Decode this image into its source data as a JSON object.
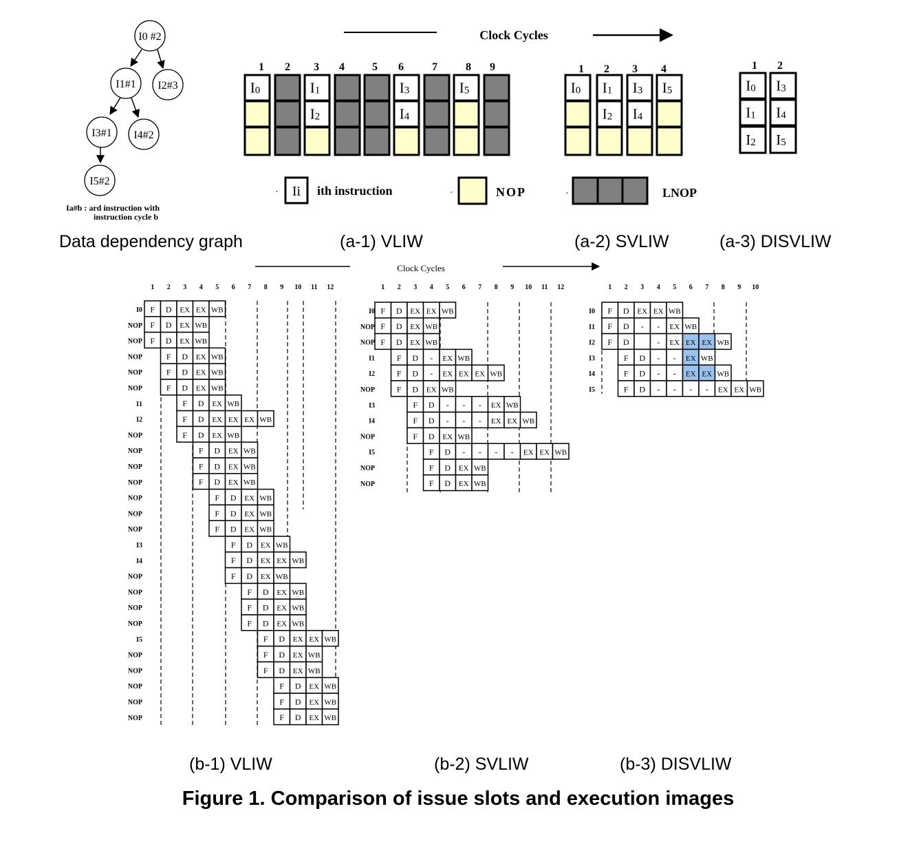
{
  "caption": "Figure 1. Comparison of issue slots and execution images",
  "clock_cycles_label": "Clock Cycles",
  "clock_cycles_label_small": "Clock    Cycles",
  "colors": {
    "nop": "#ffffcc",
    "lnop": "#808080",
    "highlight": "#99c2ee",
    "cell": "#ffffff",
    "line": "#000000"
  },
  "graph": {
    "label": "Data dependency graph",
    "note_line1": "Ia#b :  ard  instruction with",
    "note_line2": "instruction cycle      b",
    "nodes": [
      {
        "id": "n0",
        "text": "I0 #2"
      },
      {
        "id": "n1",
        "text": "I1#1"
      },
      {
        "id": "n2",
        "text": "I2#3"
      },
      {
        "id": "n3",
        "text": "I3#1"
      },
      {
        "id": "n4",
        "text": "I4#2"
      },
      {
        "id": "n5",
        "text": "I5#2"
      }
    ]
  },
  "legend": {
    "instr_sym": "Ii",
    "instr_text": "ith instruction",
    "nop_text": "NOP",
    "lnop_text": "LNOP",
    "bullet": "·"
  },
  "panels": {
    "a1": {
      "label": "(a-1) VLIW",
      "cycles": [
        "1",
        "2",
        "3",
        "4",
        "5",
        "6",
        "7",
        "8",
        "9"
      ],
      "columns": [
        [
          "I0",
          "nop",
          "nop"
        ],
        [
          "lnop",
          "lnop",
          "lnop"
        ],
        [
          "I1",
          "I2",
          "nop"
        ],
        [
          "lnop",
          "lnop",
          "lnop"
        ],
        [
          "lnop",
          "lnop",
          "lnop"
        ],
        [
          "I3",
          "I4",
          "nop"
        ],
        [
          "lnop",
          "lnop",
          "lnop"
        ],
        [
          "I5",
          "nop",
          "nop"
        ],
        [
          "lnop",
          "lnop",
          "lnop"
        ]
      ]
    },
    "a2": {
      "label": "(a-2) SVLIW",
      "cycles": [
        "1",
        "2",
        "3",
        "4"
      ],
      "columns": [
        [
          "I0",
          "nop",
          "nop"
        ],
        [
          "I1",
          "I2",
          "nop"
        ],
        [
          "I3",
          "I4",
          "nop"
        ],
        [
          "I5",
          "nop",
          "nop"
        ]
      ]
    },
    "a3": {
      "label": "(a-3) DISVLIW",
      "cycles": [
        "1",
        "2"
      ],
      "columns": [
        [
          "I0",
          "I1",
          "I2"
        ],
        [
          "I3",
          "I4",
          "I5"
        ]
      ]
    },
    "b1": {
      "label": "(b-1) VLIW",
      "cycles": [
        "1",
        "2",
        "3",
        "4",
        "5",
        "6",
        "7",
        "8",
        "9",
        "10",
        "11",
        "12"
      ],
      "rows": [
        {
          "label": "I0",
          "start": 0,
          "stages": [
            "F",
            "D",
            "EX",
            "EX",
            "WB"
          ]
        },
        {
          "label": "NOP",
          "start": 0,
          "stages": [
            "F",
            "D",
            "EX",
            "WB"
          ]
        },
        {
          "label": "NOP",
          "start": 0,
          "stages": [
            "F",
            "D",
            "EX",
            "WB"
          ]
        },
        {
          "label": "NOP",
          "start": 1,
          "stages": [
            "F",
            "D",
            "EX",
            "WB"
          ]
        },
        {
          "label": "NOP",
          "start": 1,
          "stages": [
            "F",
            "D",
            "EX",
            "WB"
          ]
        },
        {
          "label": "NOP",
          "start": 1,
          "stages": [
            "F",
            "D",
            "EX",
            "WB"
          ]
        },
        {
          "label": "I1",
          "start": 2,
          "stages": [
            "F",
            "D",
            "EX",
            "WB"
          ]
        },
        {
          "label": "I2",
          "start": 2,
          "stages": [
            "F",
            "D",
            "EX",
            "EX",
            "EX",
            "WB"
          ]
        },
        {
          "label": "NOP",
          "start": 2,
          "stages": [
            "F",
            "D",
            "EX",
            "WB"
          ]
        },
        {
          "label": "NOP",
          "start": 3,
          "stages": [
            "F",
            "D",
            "EX",
            "WB"
          ]
        },
        {
          "label": "NOP",
          "start": 3,
          "stages": [
            "F",
            "D",
            "EX",
            "WB"
          ]
        },
        {
          "label": "NOP",
          "start": 3,
          "stages": [
            "F",
            "D",
            "EX",
            "WB"
          ]
        },
        {
          "label": "NOP",
          "start": 4,
          "stages": [
            "F",
            "D",
            "EX",
            "WB"
          ]
        },
        {
          "label": "NOP",
          "start": 4,
          "stages": [
            "F",
            "D",
            "EX",
            "WB"
          ]
        },
        {
          "label": "NOP",
          "start": 4,
          "stages": [
            "F",
            "D",
            "EX",
            "WB"
          ]
        },
        {
          "label": "I3",
          "start": 5,
          "stages": [
            "F",
            "D",
            "EX",
            "WB"
          ]
        },
        {
          "label": "I4",
          "start": 5,
          "stages": [
            "F",
            "D",
            "EX",
            "EX",
            "WB"
          ]
        },
        {
          "label": "NOP",
          "start": 5,
          "stages": [
            "F",
            "D",
            "EX",
            "WB"
          ]
        },
        {
          "label": "NOP",
          "start": 6,
          "stages": [
            "F",
            "D",
            "EX",
            "WB"
          ]
        },
        {
          "label": "NOP",
          "start": 6,
          "stages": [
            "F",
            "D",
            "EX",
            "WB"
          ]
        },
        {
          "label": "NOP",
          "start": 6,
          "stages": [
            "F",
            "D",
            "EX",
            "WB"
          ]
        },
        {
          "label": "I5",
          "start": 7,
          "stages": [
            "F",
            "D",
            "EX",
            "EX",
            "WB"
          ]
        },
        {
          "label": "NOP",
          "start": 7,
          "stages": [
            "F",
            "D",
            "EX",
            "WB"
          ]
        },
        {
          "label": "NOP",
          "start": 7,
          "stages": [
            "F",
            "D",
            "EX",
            "WB"
          ]
        },
        {
          "label": "NOP",
          "start": 8,
          "stages": [
            "F",
            "D",
            "EX",
            "WB"
          ]
        },
        {
          "label": "NOP",
          "start": 8,
          "stages": [
            "F",
            "D",
            "EX",
            "WB"
          ]
        },
        {
          "label": "NOP",
          "start": 8,
          "stages": [
            "F",
            "D",
            "EX",
            "WB"
          ]
        }
      ]
    },
    "b2": {
      "label": "(b-2) SVLIW",
      "cycles": [
        "1",
        "2",
        "3",
        "4",
        "5",
        "6",
        "7",
        "8",
        "9",
        "10",
        "11",
        "12"
      ],
      "rows": [
        {
          "label": "I0",
          "start": 0,
          "stages": [
            "F",
            "D",
            "EX",
            "EX",
            "WB"
          ]
        },
        {
          "label": "NOP",
          "start": 0,
          "stages": [
            "F",
            "D",
            "EX",
            "WB"
          ]
        },
        {
          "label": "NOP",
          "start": 0,
          "stages": [
            "F",
            "D",
            "EX",
            "WB"
          ]
        },
        {
          "label": "I1",
          "start": 1,
          "stages": [
            "F",
            "D",
            "-",
            "EX",
            "WB"
          ]
        },
        {
          "label": "I2",
          "start": 1,
          "stages": [
            "F",
            "D",
            "-",
            "EX",
            "EX",
            "EX",
            "WB"
          ]
        },
        {
          "label": "NOP",
          "start": 1,
          "stages": [
            "F",
            "D",
            "EX",
            "WB"
          ]
        },
        {
          "label": "I3",
          "start": 2,
          "stages": [
            "F",
            "D",
            "-",
            "-",
            "-",
            "EX",
            "WB"
          ]
        },
        {
          "label": "I4",
          "start": 2,
          "stages": [
            "F",
            "D",
            "-",
            "-",
            "-",
            "EX",
            "EX",
            "WB"
          ]
        },
        {
          "label": "NOP",
          "start": 2,
          "stages": [
            "F",
            "D",
            "EX",
            "WB"
          ]
        },
        {
          "label": "I5",
          "start": 3,
          "stages": [
            "F",
            "D",
            "-",
            "-",
            "-",
            "-",
            "EX",
            "EX",
            "WB"
          ]
        },
        {
          "label": "NOP",
          "start": 3,
          "stages": [
            "F",
            "D",
            "EX",
            "WB"
          ]
        },
        {
          "label": "NOP",
          "start": 3,
          "stages": [
            "F",
            "D",
            "EX",
            "WB"
          ]
        }
      ]
    },
    "b3": {
      "label": "(b-3) DISVLIW",
      "cycles": [
        "1",
        "2",
        "3",
        "4",
        "5",
        "6",
        "7",
        "8",
        "9",
        "10"
      ],
      "rows": [
        {
          "label": "I0",
          "start": 0,
          "stages": [
            "F",
            "D",
            "EX",
            "EX",
            "WB"
          ]
        },
        {
          "label": "I1",
          "start": 0,
          "stages": [
            "F",
            "D",
            "-",
            "-",
            "EX",
            "WB"
          ]
        },
        {
          "label": "I2",
          "start": 0,
          "stages": [
            "F",
            "D",
            "",
            "-",
            "EX",
            "EX",
            "EX",
            "WB"
          ],
          "hl": [
            5,
            6
          ]
        },
        {
          "label": "I3",
          "start": 1,
          "stages": [
            "F",
            "D",
            "-",
            "-",
            "EX",
            "WB"
          ],
          "hl": [
            4
          ]
        },
        {
          "label": "I4",
          "start": 1,
          "stages": [
            "F",
            "D",
            "-",
            "-",
            "EX",
            "EX",
            "WB"
          ],
          "hl": [
            4,
            5
          ]
        },
        {
          "label": "I5",
          "start": 1,
          "stages": [
            "F",
            "D",
            "-",
            "-",
            "-",
            "-",
            "EX",
            "EX",
            "WB"
          ]
        }
      ]
    }
  }
}
